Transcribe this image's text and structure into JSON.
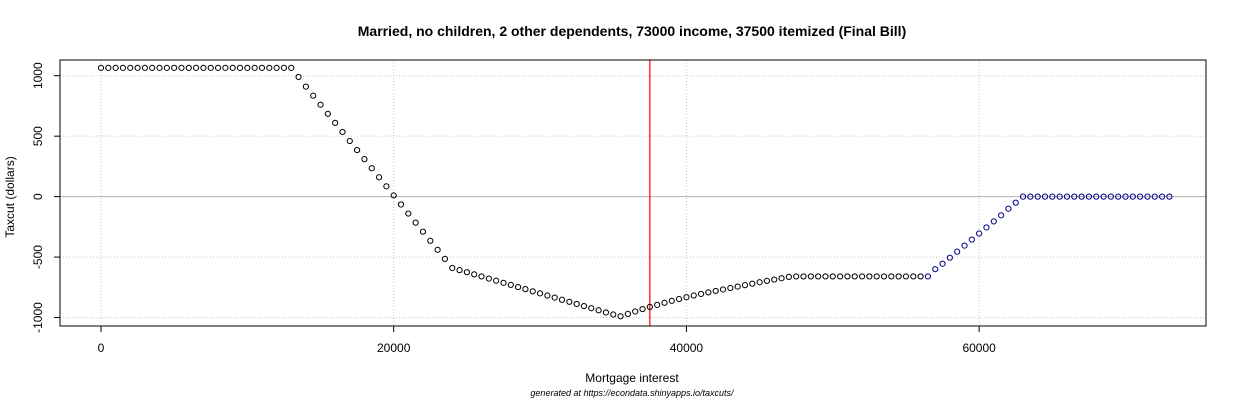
{
  "chart_data": {
    "type": "scatter",
    "title": "Married, no children, 2 other dependents, 73000 income, 37500 itemized (Final Bill)",
    "xlabel": "Mortgage interest",
    "ylabel": "Taxcut (dollars)",
    "note": "generated at https://econdata.shinyapps.io/taxcuts/",
    "xlim": [
      -2800,
      75500
    ],
    "ylim": [
      -1070,
      1130
    ],
    "x_ticks": [
      0,
      20000,
      40000,
      60000
    ],
    "y_ticks": [
      -1000,
      -500,
      0,
      500,
      1000
    ],
    "x_tick_labels": [
      "0",
      "20000",
      "40000",
      "60000"
    ],
    "y_tick_labels": [
      "-1000",
      "-500",
      "0",
      "500",
      "1000"
    ],
    "grid": true,
    "zero_line": 0,
    "vline_x": 37500,
    "x_start": 0,
    "x_step": 500,
    "values": [
      1065,
      1065,
      1065,
      1065,
      1065,
      1065,
      1065,
      1065,
      1065,
      1065,
      1065,
      1065,
      1065,
      1065,
      1065,
      1065,
      1065,
      1065,
      1065,
      1065,
      1065,
      1065,
      1065,
      1065,
      1065,
      1065,
      1065,
      990,
      910,
      835,
      760,
      685,
      610,
      535,
      460,
      385,
      310,
      235,
      160,
      85,
      10,
      -65,
      -140,
      -215,
      -290,
      -365,
      -440,
      -515,
      -590,
      -608,
      -625,
      -643,
      -660,
      -678,
      -695,
      -713,
      -730,
      -748,
      -765,
      -783,
      -800,
      -818,
      -835,
      -853,
      -870,
      -888,
      -905,
      -923,
      -940,
      -958,
      -975,
      -990,
      -970,
      -950,
      -930,
      -912,
      -895,
      -878,
      -862,
      -847,
      -832,
      -818,
      -805,
      -792,
      -780,
      -768,
      -756,
      -744,
      -732,
      -720,
      -708,
      -697,
      -686,
      -675,
      -664,
      -660,
      -660,
      -660,
      -660,
      -660,
      -660,
      -660,
      -660,
      -660,
      -660,
      -660,
      -660,
      -660,
      -660,
      -660,
      -660,
      -660,
      -660,
      -660,
      -600,
      -555,
      -505,
      -455,
      -405,
      -355,
      -305,
      -255,
      -205,
      -155,
      -100,
      -50,
      0,
      0,
      0,
      0,
      0,
      0,
      0,
      0,
      0,
      0,
      0,
      0,
      0,
      0,
      0,
      0,
      0,
      0,
      0,
      0,
      0
    ],
    "colors": {
      "point": "#000000",
      "point_alt": "#00008b",
      "vline": "#ff0000",
      "grid": "#c8c8c8",
      "zero": "#b4b4b4"
    },
    "alt_color_from_x": 56500
  }
}
